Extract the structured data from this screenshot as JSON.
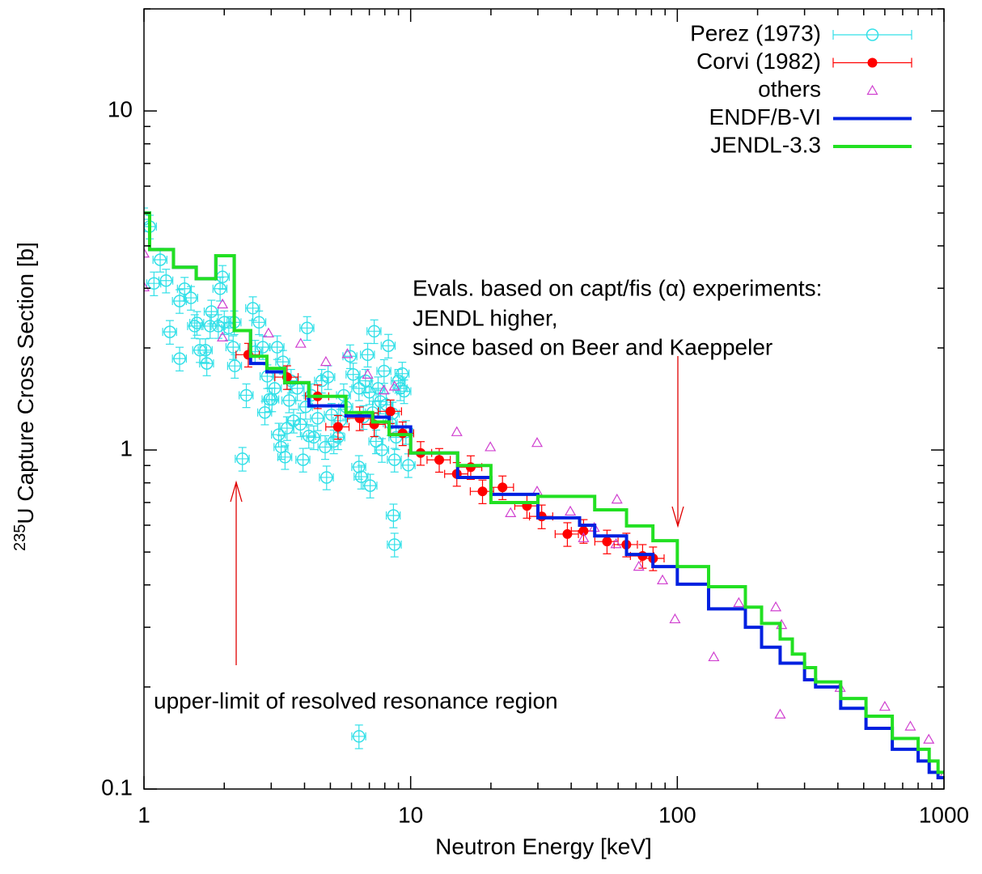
{
  "chart_data": {
    "type": "scatter",
    "x_label": "Neutron Energy [keV]",
    "y_label": {
      "sup": "235",
      "text": "U Capture Cross Section [b]"
    },
    "xlim": [
      1,
      1000
    ],
    "ylim": [
      0.1,
      20
    ],
    "xticks": [
      1,
      10,
      100,
      1000
    ],
    "yticks": [
      0.1,
      1,
      10
    ],
    "log_x": true,
    "log_y": true,
    "minor_ticks": true,
    "grid": false,
    "legend": "upper right",
    "annotations": [
      "Evals. based on capt/fis (α) experiments:",
      "JENDL higher,",
      "since based on Beer and Kaeppeler",
      "upper-limit of resolved resonance region"
    ],
    "series": [
      {
        "name": "Perez (1973)",
        "type": "errorbar",
        "marker": "open-circle",
        "color": "#33e0e8",
        "xerr_percent": 6,
        "yerr_percent": 8,
        "x": [
          1.0,
          1.05,
          1.15,
          1.21,
          1.09,
          1.25,
          1.36,
          1.36,
          1.42,
          1.5,
          1.55,
          1.58,
          1.62,
          1.7,
          1.72,
          1.77,
          1.79,
          1.9,
          1.97,
          2.0,
          1.93,
          2.08,
          2.16,
          2.18,
          2.19,
          2.42,
          2.34,
          2.56,
          2.61,
          2.7,
          2.79,
          2.84,
          2.9,
          2.95,
          3.02,
          3.09,
          3.16,
          3.2,
          3.27,
          3.32,
          3.38,
          3.44,
          3.5,
          3.56,
          3.64,
          3.76,
          3.86,
          3.95,
          4.04,
          4.09,
          4.15,
          4.24,
          4.33,
          4.48,
          4.64,
          4.78,
          4.84,
          4.9,
          5.05,
          5.15,
          5.34,
          5.45,
          5.61,
          5.72,
          5.93,
          6.09,
          6.4,
          6.4,
          6.53,
          6.65,
          6.77,
          6.9,
          7.0,
          7.05,
          7.2,
          7.3,
          7.42,
          7.55,
          7.7,
          7.8,
          7.95,
          8.1,
          8.25,
          8.4,
          8.55,
          8.7,
          8.62,
          8.7,
          8.82,
          9.0,
          9.15,
          9.3,
          9.45,
          9.6,
          9.8,
          6.4
        ],
        "values": [
          4.79,
          4.56,
          3.64,
          3.16,
          3.1,
          2.23,
          2.75,
          1.86,
          2.99,
          2.81,
          2.32,
          2.37,
          1.97,
          1.97,
          1.8,
          2.32,
          2.56,
          2.32,
          3.24,
          2.38,
          2.99,
          2.29,
          2.01,
          2.38,
          1.77,
          1.45,
          0.942,
          2.62,
          1.95,
          2.38,
          2.01,
          1.29,
          1.65,
          1.41,
          1.41,
          1.52,
          2.01,
          1.11,
          1.02,
          1.82,
          0.953,
          1.16,
          1.4,
          1.6,
          1.22,
          1.52,
          1.19,
          0.936,
          1.34,
          2.29,
          1.1,
          1.45,
          1.09,
          1.24,
          1.6,
          1.02,
          0.83,
          1.64,
          1.27,
          1.06,
          1.09,
          1.22,
          1.45,
          1.34,
          1.89,
          1.67,
          1.52,
          0.891,
          0.834,
          1.25,
          1.6,
          1.91,
          1.48,
          0.785,
          1.29,
          2.24,
          1.06,
          1.52,
          1.39,
          1.0,
          1.71,
          1.36,
          2.03,
          1.2,
          1.28,
          0.936,
          0.641,
          0.526,
          1.09,
          1.6,
          1.52,
          1.68,
          1.49,
          1.13,
          0.902,
          0.143
        ]
      },
      {
        "name": "Corvi (1982)",
        "type": "errorbar",
        "marker": "filled-circle",
        "color": "#ff0000",
        "xerr_percent": 10,
        "yerr_percent": 8,
        "x": [
          2.46,
          3.44,
          4.48,
          5.34,
          6.44,
          7.3,
          8.4,
          9.33,
          10.9,
          12.8,
          14.9,
          16.8,
          18.6,
          22.1,
          27.3,
          31,
          38.7,
          44.5,
          54.5,
          64.4,
          74.1,
          81.1
        ],
        "values": [
          1.91,
          1.64,
          1.44,
          1.17,
          1.24,
          1.19,
          1.3,
          1.12,
          0.98,
          0.935,
          0.85,
          0.89,
          0.755,
          0.776,
          0.684,
          0.637,
          0.565,
          0.577,
          0.537,
          0.526,
          0.487,
          0.479
        ]
      },
      {
        "name": "others",
        "type": "scatter",
        "marker": "triangle",
        "color": "#d040d0",
        "x": [
          1,
          1,
          1.97,
          1.97,
          2.93,
          3.87,
          4.81,
          5.79,
          6.9,
          7.93,
          8.7,
          14.9,
          19.9,
          29.8,
          29.8,
          23.7,
          39.7,
          48.8,
          44.5,
          59.4,
          58.9,
          71.7,
          88,
          98,
          137,
          170,
          234,
          246,
          243,
          408,
          600,
          748,
          877,
          1000
        ],
        "values": [
          3.8,
          3.02,
          2.69,
          2.15,
          2.21,
          2.06,
          1.82,
          1.92,
          1.67,
          1.5,
          1.54,
          1.13,
          1.02,
          1.05,
          0.755,
          0.652,
          0.659,
          0.59,
          0.55,
          0.715,
          0.528,
          0.453,
          0.413,
          0.317,
          0.245,
          0.354,
          0.344,
          0.305,
          0.166,
          0.199,
          0.175,
          0.153,
          0.14,
          0.11
        ]
      },
      {
        "name": "ENDF/B-VI",
        "type": "step",
        "color": "#0020e0",
        "x": [
          1,
          1.05,
          1.29,
          1.57,
          1.86,
          2.18,
          2.51,
          2.89,
          3.37,
          4.15,
          5.72,
          7.2,
          8.3,
          10,
          15,
          20,
          30,
          43,
          49,
          64.5,
          81,
          100,
          131,
          180,
          207,
          243,
          300,
          330,
          410,
          510,
          640,
          800,
          880,
          950,
          1000
        ],
        "values": [
          5.0,
          3.9,
          3.46,
          3.2,
          3.74,
          2.25,
          1.8,
          1.7,
          1.58,
          1.35,
          1.26,
          1.25,
          1.17,
          0.98,
          0.83,
          0.74,
          0.631,
          0.6,
          0.558,
          0.492,
          0.453,
          0.402,
          0.34,
          0.3,
          0.262,
          0.235,
          0.21,
          0.2,
          0.173,
          0.151,
          0.131,
          0.121,
          0.112,
          0.108,
          0.108
        ]
      },
      {
        "name": "JENDL-3.3",
        "type": "step",
        "color": "#22e022",
        "x": [
          1,
          1.05,
          1.29,
          1.57,
          1.86,
          2.18,
          2.51,
          2.89,
          3.37,
          4.15,
          5.72,
          7.2,
          8.3,
          10,
          15,
          20,
          30,
          49,
          64.5,
          81,
          100,
          131,
          180,
          207,
          243,
          270,
          300,
          330,
          410,
          510,
          640,
          800,
          880,
          950,
          1000
        ],
        "values": [
          5.0,
          3.9,
          3.46,
          3.2,
          3.74,
          2.25,
          1.89,
          1.74,
          1.58,
          1.44,
          1.29,
          1.21,
          1.11,
          0.98,
          0.9,
          0.7,
          0.73,
          0.666,
          0.597,
          0.54,
          0.453,
          0.395,
          0.344,
          0.308,
          0.277,
          0.25,
          0.228,
          0.207,
          0.185,
          0.164,
          0.141,
          0.131,
          0.121,
          0.112,
          0.112
        ]
      }
    ]
  }
}
